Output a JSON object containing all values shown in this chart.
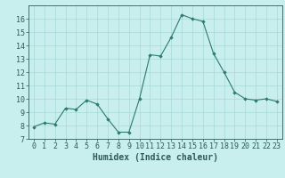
{
  "x": [
    0,
    1,
    2,
    3,
    4,
    5,
    6,
    7,
    8,
    9,
    10,
    11,
    12,
    13,
    14,
    15,
    16,
    17,
    18,
    19,
    20,
    21,
    22,
    23
  ],
  "y": [
    7.9,
    8.2,
    8.1,
    9.3,
    9.2,
    9.9,
    9.6,
    8.5,
    7.5,
    7.5,
    10.0,
    13.3,
    13.2,
    14.6,
    16.3,
    16.0,
    15.8,
    13.4,
    12.0,
    10.5,
    10.0,
    9.9,
    10.0,
    9.8
  ],
  "line_color": "#2d7a6e",
  "marker": "D",
  "marker_size": 1.8,
  "bg_color": "#c8eeee",
  "grid_color": "#a8d8d8",
  "xlabel": "Humidex (Indice chaleur)",
  "xlabel_fontsize": 7,
  "tick_label_color": "#2d5a5a",
  "tick_fontsize": 6,
  "ylim": [
    7,
    17
  ],
  "xlim": [
    -0.5,
    23.5
  ],
  "yticks": [
    7,
    8,
    9,
    10,
    11,
    12,
    13,
    14,
    15,
    16
  ],
  "xticks": [
    0,
    1,
    2,
    3,
    4,
    5,
    6,
    7,
    8,
    9,
    10,
    11,
    12,
    13,
    14,
    15,
    16,
    17,
    18,
    19,
    20,
    21,
    22,
    23
  ]
}
